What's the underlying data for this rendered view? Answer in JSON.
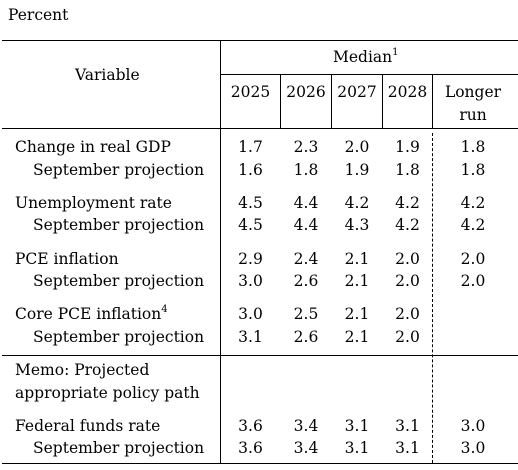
{
  "unit_label": "Percent",
  "header": {
    "variable": "Variable",
    "median": "Median",
    "median_note": "1",
    "years": [
      "2025",
      "2026",
      "2027",
      "2028"
    ],
    "longer_run_line1": "Longer",
    "longer_run_line2": "run"
  },
  "rows": [
    {
      "label": "Change in real GDP",
      "values": [
        "1.7",
        "2.3",
        "2.0",
        "1.9"
      ],
      "longer": "1.8"
    },
    {
      "label": "September projection",
      "values": [
        "1.6",
        "1.8",
        "1.9",
        "1.8"
      ],
      "longer": "1.8"
    },
    {
      "label": "Unemployment rate",
      "values": [
        "4.5",
        "4.4",
        "4.2",
        "4.2"
      ],
      "longer": "4.2"
    },
    {
      "label": "September projection",
      "values": [
        "4.5",
        "4.4",
        "4.3",
        "4.2"
      ],
      "longer": "4.2"
    },
    {
      "label": "PCE inflation",
      "values": [
        "2.9",
        "2.4",
        "2.1",
        "2.0"
      ],
      "longer": "2.0"
    },
    {
      "label": "September projection",
      "values": [
        "3.0",
        "2.6",
        "2.1",
        "2.0"
      ],
      "longer": "2.0"
    },
    {
      "label": "Core PCE inflation",
      "note": "4",
      "values": [
        "3.0",
        "2.5",
        "2.1",
        "2.0"
      ],
      "longer": ""
    },
    {
      "label": "September projection",
      "values": [
        "3.1",
        "2.6",
        "2.1",
        "2.0"
      ],
      "longer": ""
    }
  ],
  "memo": {
    "line1": "Memo: Projected",
    "line2": "appropriate policy path"
  },
  "policy_rows": [
    {
      "label": "Federal funds rate",
      "values": [
        "3.6",
        "3.4",
        "3.1",
        "3.1"
      ],
      "longer": "3.0"
    },
    {
      "label": "September projection",
      "values": [
        "3.6",
        "3.4",
        "3.1",
        "3.1"
      ],
      "longer": "3.0"
    }
  ]
}
